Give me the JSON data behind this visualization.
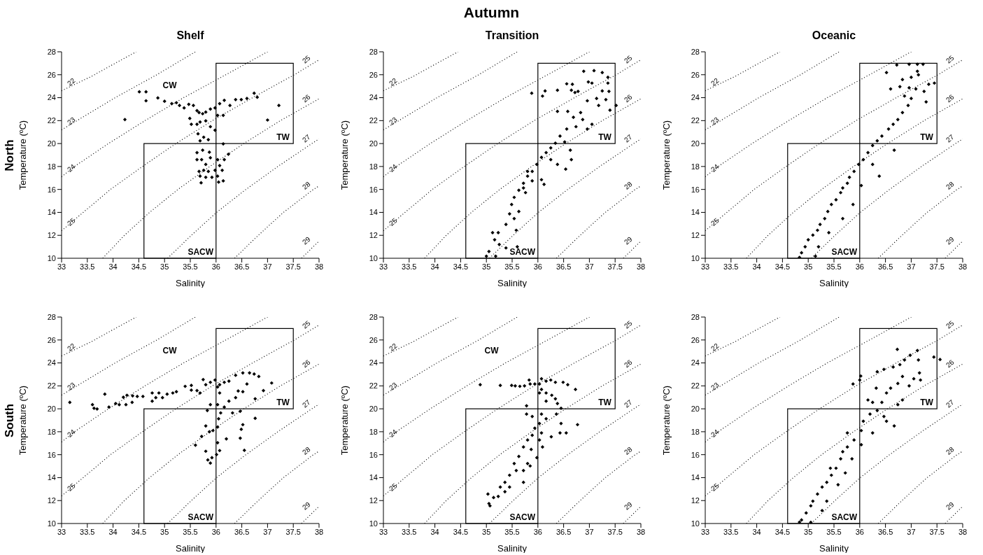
{
  "chart_data": [
    {
      "type": "scatter",
      "title": "Shelf",
      "xlabel": "Salinity",
      "ylabel": "Temperature (ºC)",
      "xlim": [
        33,
        38
      ],
      "xticks": [
        33,
        33.5,
        34,
        34.5,
        35,
        35.5,
        36,
        36.5,
        37,
        37.5,
        38
      ],
      "ylim": [
        10,
        28
      ],
      "yticks": [
        10,
        12,
        14,
        16,
        18,
        20,
        22,
        24,
        26,
        28
      ],
      "annotations": [
        "Autumn",
        "North",
        "TW",
        "SACW",
        "CW"
      ],
      "series": [
        {
          "type": "line",
          "name": "22",
          "color": "#000000",
          "line_style": "dotted",
          "x": [
            33,
            33.6,
            34,
            34.45
          ],
          "values": [
            24.6,
            25.9,
            26.9,
            28
          ]
        },
        {
          "type": "line",
          "name": "23",
          "color": "#000000",
          "line_style": "dotted",
          "x": [
            33,
            33.3,
            34.04,
            34.85,
            35.6
          ],
          "values": [
            21.2,
            22,
            24,
            26,
            28
          ]
        },
        {
          "type": "line",
          "name": "24",
          "color": "#000000",
          "line_style": "dotted",
          "x": [
            33,
            33.25,
            33.91,
            34.62,
            35.37,
            36.19,
            37
          ],
          "values": [
            17.1,
            18,
            20,
            22,
            24,
            26,
            28
          ]
        },
        {
          "type": "line",
          "name": "25",
          "color": "#000000",
          "line_style": "dotted",
          "x": [
            33,
            33.42,
            33.95,
            34.57,
            35.22,
            35.93,
            36.71,
            37.52,
            38
          ],
          "values": [
            12.4,
            14,
            16,
            18,
            20,
            22,
            24,
            26,
            27.3
          ]
        },
        {
          "type": "line",
          "name": "26",
          "color": "#000000",
          "line_style": "dotted",
          "x": [
            33.8,
            34.22,
            34.71,
            35.26,
            35.88,
            36.54,
            37.25,
            38
          ],
          "values": [
            10,
            12,
            14,
            16,
            18,
            20,
            22,
            23.9
          ]
        },
        {
          "type": "line",
          "name": "27",
          "color": "#000000",
          "line_style": "dotted",
          "x": [
            35.06,
            35.52,
            36.01,
            36.58,
            37.2,
            37.86,
            38
          ],
          "values": [
            10,
            12,
            14,
            16,
            18,
            20,
            20.4
          ]
        },
        {
          "type": "line",
          "name": "28",
          "color": "#000000",
          "line_style": "dotted",
          "x": [
            36.36,
            36.82,
            37.31,
            37.89,
            38
          ],
          "values": [
            10,
            12,
            14,
            16,
            16.3
          ]
        },
        {
          "type": "line",
          "name": "29",
          "color": "#000000",
          "line_style": "dotted",
          "x": [
            37.66,
            38
          ],
          "values": [
            10,
            11.5
          ]
        },
        {
          "type": "scatter",
          "color": "#000000",
          "marker": "diamond",
          "x": [
            34.51,
            34.64,
            34.64,
            34.23,
            34.87,
            35.0,
            35.14,
            35.23,
            35.29,
            35.38,
            35.47,
            35.56,
            35.63,
            35.67,
            35.74,
            35.8,
            35.89,
            35.98,
            36.07,
            36.16,
            36.27,
            36.38,
            36.49,
            36.6,
            36.74,
            36.8,
            37.22,
            37.0,
            36.03,
            36.14,
            35.49,
            35.52,
            35.63,
            35.69,
            35.8,
            35.89,
            35.98,
            35.65,
            35.76,
            35.85,
            35.69,
            36.14,
            35.74,
            35.87,
            35.63,
            35.63,
            35.72,
            35.89,
            36.03,
            36.16,
            36.24,
            35.8,
            36.07,
            35.67,
            35.76,
            35.85,
            35.98,
            36.12,
            35.69,
            35.8,
            35.92,
            36.03,
            35.71,
            36.05,
            36.14
          ],
          "values": [
            24.51,
            24.51,
            23.73,
            22.09,
            23.98,
            23.69,
            23.48,
            23.56,
            23.32,
            23.11,
            23.42,
            23.32,
            22.87,
            22.7,
            22.6,
            22.74,
            23.01,
            23.11,
            23.48,
            23.77,
            23.32,
            23.83,
            23.83,
            23.93,
            24.39,
            24.04,
            23.32,
            22.05,
            22.46,
            22.46,
            22.19,
            21.68,
            21.68,
            21.88,
            21.98,
            21.47,
            21.16,
            20.85,
            20.55,
            20.34,
            20.24,
            19.97,
            19.42,
            19.25,
            19.21,
            18.6,
            18.6,
            18.76,
            18.6,
            18.6,
            19.07,
            18.18,
            18.08,
            17.57,
            17.67,
            17.57,
            17.67,
            17.67,
            17.16,
            17.06,
            17.06,
            17.16,
            16.58,
            16.64,
            16.75
          ]
        }
      ]
    },
    {
      "type": "scatter",
      "title": "Transition",
      "xlabel": "Salinity",
      "ylabel": "Temperature (ºC)",
      "xlim": [
        33,
        38
      ],
      "xticks": [
        33,
        33.5,
        34,
        34.5,
        35,
        35.5,
        36,
        36.5,
        37,
        37.5,
        38
      ],
      "ylim": [
        10,
        28
      ],
      "yticks": [
        10,
        12,
        14,
        16,
        18,
        20,
        22,
        24,
        26,
        28
      ],
      "annotations": [
        "TW",
        "SACW"
      ],
      "series": [
        {
          "type": "line",
          "name": "22",
          "color": "#000000",
          "line_style": "dotted",
          "x": [
            33,
            33.6,
            34,
            34.45
          ],
          "values": [
            24.6,
            25.9,
            26.9,
            28
          ]
        },
        {
          "type": "line",
          "name": "23",
          "color": "#000000",
          "line_style": "dotted",
          "x": [
            33,
            33.3,
            34.04,
            34.85,
            35.6
          ],
          "values": [
            21.2,
            22,
            24,
            26,
            28
          ]
        },
        {
          "type": "line",
          "name": "24",
          "color": "#000000",
          "line_style": "dotted",
          "x": [
            33,
            33.25,
            33.91,
            34.62,
            35.37,
            36.19,
            37
          ],
          "values": [
            17.1,
            18,
            20,
            22,
            24,
            26,
            28
          ]
        },
        {
          "type": "line",
          "name": "25",
          "color": "#000000",
          "line_style": "dotted",
          "x": [
            33,
            33.42,
            33.95,
            34.57,
            35.22,
            35.93,
            36.71,
            37.52,
            38
          ],
          "values": [
            12.4,
            14,
            16,
            18,
            20,
            22,
            24,
            26,
            27.3
          ]
        },
        {
          "type": "line",
          "name": "26",
          "color": "#000000",
          "line_style": "dotted",
          "x": [
            33.8,
            34.22,
            34.71,
            35.26,
            35.88,
            36.54,
            37.25,
            38
          ],
          "values": [
            10,
            12,
            14,
            16,
            18,
            20,
            22,
            23.9
          ]
        },
        {
          "type": "line",
          "name": "27",
          "color": "#000000",
          "line_style": "dotted",
          "x": [
            35.06,
            35.52,
            36.01,
            36.58,
            37.2,
            37.86,
            38
          ],
          "values": [
            10,
            12,
            14,
            16,
            18,
            20,
            20.4
          ]
        },
        {
          "type": "line",
          "name": "28",
          "color": "#000000",
          "line_style": "dotted",
          "x": [
            36.36,
            36.82,
            37.31,
            37.89,
            38
          ],
          "values": [
            10,
            12,
            14,
            16,
            16.3
          ]
        },
        {
          "type": "line",
          "name": "29",
          "color": "#000000",
          "line_style": "dotted",
          "x": [
            37.66,
            38
          ],
          "values": [
            10,
            11.5
          ]
        },
        {
          "type": "scatter",
          "color": "#000000",
          "marker": "diamond",
          "x": [
            35.88,
            36.09,
            36.14,
            36.38,
            36.56,
            36.67,
            36.65,
            36.72,
            36.78,
            36.89,
            37.09,
            37.25,
            37.36,
            36.98,
            37.05,
            37.36,
            37.25,
            37.38,
            37.14,
            37.32,
            37.52,
            37.4,
            37.18,
            36.96,
            36.83,
            36.87,
            36.69,
            36.58,
            36.38,
            36.74,
            36.96,
            37.05,
            36.56,
            36.43,
            36.34,
            36.52,
            36.63,
            36.25,
            36.16,
            36.07,
            36.25,
            36.38,
            36.54,
            36.65,
            35.98,
            35.89,
            35.8,
            35.89,
            36.07,
            36.12,
            35.72,
            35.63,
            35.76,
            35.54,
            35.49,
            35.63,
            35.45,
            35.38,
            35.54,
            35.58,
            35.23,
            35.12,
            35.16,
            35.25,
            35.05,
            35.0,
            35.18,
            35.38,
            35.6,
            35.8,
            35.72
          ],
          "values": [
            24.39,
            24.14,
            24.59,
            24.65,
            25.21,
            25.17,
            24.65,
            24.45,
            24.55,
            26.3,
            26.36,
            26.19,
            25.78,
            25.37,
            25.27,
            25.27,
            24.59,
            24.55,
            23.93,
            23.83,
            23.32,
            22.91,
            23.32,
            23.73,
            22.7,
            22.09,
            22.29,
            22.8,
            22.8,
            21.47,
            21.27,
            21.68,
            21.27,
            20.65,
            20.03,
            20.14,
            19.42,
            19.62,
            19.21,
            18.8,
            18.6,
            18.18,
            17.77,
            18.6,
            18.18,
            17.57,
            17.16,
            16.75,
            16.85,
            16.44,
            16.54,
            15.93,
            15.72,
            15.31,
            14.69,
            14.08,
            13.87,
            12.95,
            13.46,
            12.44,
            12.23,
            12.23,
            11.61,
            11.2,
            10.59,
            10.18,
            10.18,
            10.9,
            11.0,
            17.57,
            16.13
          ]
        }
      ]
    },
    {
      "type": "scatter",
      "title": "Oceanic",
      "xlabel": "Salinity",
      "ylabel": "Temperature (ºC)",
      "xlim": [
        33,
        38
      ],
      "xticks": [
        33,
        33.5,
        34,
        34.5,
        35,
        35.5,
        36,
        36.5,
        37,
        37.5,
        38
      ],
      "ylim": [
        10,
        28
      ],
      "yticks": [
        10,
        12,
        14,
        16,
        18,
        20,
        22,
        24,
        26,
        28
      ],
      "annotations": [
        "TW",
        "SACW"
      ],
      "series": [
        {
          "type": "line",
          "name": "22",
          "color": "#000000",
          "line_style": "dotted",
          "x": [
            33,
            33.6,
            34,
            34.45
          ],
          "values": [
            24.6,
            25.9,
            26.9,
            28
          ]
        },
        {
          "type": "line",
          "name": "23",
          "color": "#000000",
          "line_style": "dotted",
          "x": [
            33,
            33.3,
            34.04,
            34.85,
            35.6
          ],
          "values": [
            21.2,
            22,
            24,
            26,
            28
          ]
        },
        {
          "type": "line",
          "name": "24",
          "color": "#000000",
          "line_style": "dotted",
          "x": [
            33,
            33.25,
            33.91,
            34.62,
            35.37,
            36.19,
            37
          ],
          "values": [
            17.1,
            18,
            20,
            22,
            24,
            26,
            28
          ]
        },
        {
          "type": "line",
          "name": "25",
          "color": "#000000",
          "line_style": "dotted",
          "x": [
            33,
            33.42,
            33.95,
            34.57,
            35.22,
            35.93,
            36.71,
            37.52,
            38
          ],
          "values": [
            12.4,
            14,
            16,
            18,
            20,
            22,
            24,
            26,
            27.3
          ]
        },
        {
          "type": "line",
          "name": "26",
          "color": "#000000",
          "line_style": "dotted",
          "x": [
            33.8,
            34.22,
            34.71,
            35.26,
            35.88,
            36.54,
            37.25,
            38
          ],
          "values": [
            10,
            12,
            14,
            16,
            18,
            20,
            22,
            23.9
          ]
        },
        {
          "type": "line",
          "name": "27",
          "color": "#000000",
          "line_style": "dotted",
          "x": [
            35.06,
            35.52,
            36.01,
            36.58,
            37.2,
            37.86,
            38
          ],
          "values": [
            10,
            12,
            14,
            16,
            18,
            20,
            20.4
          ]
        },
        {
          "type": "line",
          "name": "28",
          "color": "#000000",
          "line_style": "dotted",
          "x": [
            36.36,
            36.82,
            37.31,
            37.89,
            38
          ],
          "values": [
            10,
            12,
            14,
            16,
            16.3
          ]
        },
        {
          "type": "line",
          "name": "29",
          "color": "#000000",
          "line_style": "dotted",
          "x": [
            37.66,
            38
          ],
          "values": [
            10,
            11.5
          ]
        },
        {
          "type": "scatter",
          "color": "#000000",
          "marker": "diamond",
          "x": [
            36.72,
            36.96,
            37.12,
            37.12,
            37.23,
            36.52,
            36.83,
            37.0,
            37.14,
            37.34,
            37.45,
            36.78,
            36.96,
            37.09,
            37.25,
            37.29,
            36.6,
            36.87,
            37.0,
            36.94,
            36.83,
            36.74,
            36.65,
            36.56,
            36.43,
            36.34,
            36.67,
            36.25,
            36.16,
            36.07,
            36.25,
            36.38,
            35.98,
            35.89,
            35.8,
            35.76,
            36.03,
            35.67,
            35.63,
            35.54,
            35.87,
            35.45,
            35.38,
            35.32,
            35.67,
            35.23,
            35.18,
            35.09,
            35.4,
            35.0,
            34.94,
            35.2,
            34.87,
            34.83,
            35.14
          ],
          "values": [
            26.85,
            26.91,
            26.91,
            26.3,
            26.91,
            26.19,
            25.58,
            25.78,
            25.99,
            25.17,
            25.27,
            24.96,
            24.86,
            24.76,
            24.55,
            23.63,
            24.76,
            24.14,
            23.93,
            23.32,
            22.7,
            22.09,
            21.68,
            21.27,
            20.65,
            20.24,
            19.42,
            19.83,
            19.21,
            18.6,
            18.18,
            17.16,
            18.18,
            17.57,
            17.06,
            16.54,
            16.34,
            16.13,
            15.72,
            15.1,
            14.69,
            14.69,
            14.08,
            13.46,
            13.46,
            12.95,
            12.44,
            12.02,
            12.23,
            11.61,
            11.0,
            11.0,
            10.48,
            10.07,
            10.18
          ]
        }
      ]
    },
    {
      "type": "scatter",
      "xlabel": "Salinity",
      "ylabel": "Temperature (ºC)",
      "xlim": [
        33,
        38
      ],
      "xticks": [
        33,
        33.5,
        34,
        34.5,
        35,
        35.5,
        36,
        36.5,
        37,
        37.5,
        38
      ],
      "ylim": [
        10,
        28
      ],
      "yticks": [
        10,
        12,
        14,
        16,
        18,
        20,
        22,
        24,
        26,
        28
      ],
      "annotations": [
        "South",
        "TW",
        "SACW",
        "CW"
      ],
      "series": [
        {
          "type": "line",
          "name": "22",
          "color": "#000000",
          "line_style": "dotted",
          "x": [
            33,
            33.6,
            34,
            34.45
          ],
          "values": [
            24.6,
            25.9,
            26.9,
            28
          ]
        },
        {
          "type": "line",
          "name": "23",
          "color": "#000000",
          "line_style": "dotted",
          "x": [
            33,
            33.3,
            34.04,
            34.85,
            35.6
          ],
          "values": [
            21.2,
            22,
            24,
            26,
            28
          ]
        },
        {
          "type": "line",
          "name": "24",
          "color": "#000000",
          "line_style": "dotted",
          "x": [
            33,
            33.25,
            33.91,
            34.62,
            35.37,
            36.19,
            37
          ],
          "values": [
            17.1,
            18,
            20,
            22,
            24,
            26,
            28
          ]
        },
        {
          "type": "line",
          "name": "25",
          "color": "#000000",
          "line_style": "dotted",
          "x": [
            33,
            33.42,
            33.95,
            34.57,
            35.22,
            35.93,
            36.71,
            37.52,
            38
          ],
          "values": [
            12.4,
            14,
            16,
            18,
            20,
            22,
            24,
            26,
            27.3
          ]
        },
        {
          "type": "line",
          "name": "26",
          "color": "#000000",
          "line_style": "dotted",
          "x": [
            33.8,
            34.22,
            34.71,
            35.26,
            35.88,
            36.54,
            37.25,
            38
          ],
          "values": [
            10,
            12,
            14,
            16,
            18,
            20,
            22,
            23.9
          ]
        },
        {
          "type": "line",
          "name": "27",
          "color": "#000000",
          "line_style": "dotted",
          "x": [
            35.06,
            35.52,
            36.01,
            36.58,
            37.2,
            37.86,
            38
          ],
          "values": [
            10,
            12,
            14,
            16,
            18,
            20,
            20.4
          ]
        },
        {
          "type": "line",
          "name": "28",
          "color": "#000000",
          "line_style": "dotted",
          "x": [
            36.36,
            36.82,
            37.31,
            37.89,
            38
          ],
          "values": [
            10,
            12,
            14,
            16,
            16.3
          ]
        },
        {
          "type": "line",
          "name": "29",
          "color": "#000000",
          "line_style": "dotted",
          "x": [
            37.66,
            38
          ],
          "values": [
            10,
            11.5
          ]
        },
        {
          "type": "scatter",
          "color": "#000000",
          "marker": "diamond",
          "x": [
            33.16,
            33.6,
            33.63,
            33.69,
            33.84,
            33.92,
            34.05,
            34.12,
            34.2,
            34.25,
            34.27,
            34.37,
            34.38,
            34.47,
            34.58,
            34.76,
            34.76,
            34.83,
            34.89,
            34.96,
            35.05,
            35.16,
            35.23,
            35.4,
            35.52,
            35.52,
            35.63,
            35.75,
            35.69,
            35.8,
            35.89,
            35.98,
            36.07,
            36.03,
            36.16,
            36.25,
            36.38,
            36.52,
            36.65,
            36.74,
            36.83,
            37.08,
            36.92,
            36.6,
            36.43,
            36.25,
            36.07,
            36.38,
            36.52,
            36.76,
            35.83,
            35.89,
            36.03,
            36.16,
            36.09,
            36.32,
            36.47,
            36.76,
            35.8,
            35.87,
            35.72,
            35.94,
            36.03,
            36.05,
            36.2,
            36.52,
            36.49,
            36.47,
            35.6,
            35.8,
            36.03,
            36.07,
            35.84,
            35.92,
            35.89,
            36.01,
            36.55
          ],
          "values": [
            20.56,
            20.36,
            20.05,
            19.99,
            21.28,
            20.15,
            20.46,
            20.36,
            21.01,
            20.36,
            21.18,
            20.56,
            21.13,
            21.08,
            21.08,
            21.38,
            20.67,
            20.97,
            21.38,
            20.97,
            21.28,
            21.38,
            21.49,
            21.96,
            22.04,
            21.63,
            21.59,
            22.55,
            21.38,
            22.1,
            22.31,
            22.51,
            22.1,
            21.9,
            22.31,
            22.41,
            22.92,
            23.13,
            23.13,
            23.03,
            22.82,
            22.25,
            21.59,
            22.16,
            21.55,
            20.67,
            21.38,
            20.97,
            21.49,
            20.87,
            19.85,
            20.36,
            20.36,
            20.15,
            19.64,
            19.64,
            19.79,
            19.17,
            18.51,
            18.0,
            17.59,
            18.1,
            18.41,
            19.13,
            17.38,
            18.62,
            18.21,
            17.44,
            16.83,
            16.3,
            17.04,
            16.36,
            15.54,
            15.74,
            15.27,
            16.01,
            16.38
          ]
        }
      ]
    },
    {
      "type": "scatter",
      "xlabel": "Salinity",
      "ylabel": "Temperature (ºC)",
      "xlim": [
        33,
        38
      ],
      "xticks": [
        33,
        33.5,
        34,
        34.5,
        35,
        35.5,
        36,
        36.5,
        37,
        37.5,
        38
      ],
      "ylim": [
        10,
        28
      ],
      "yticks": [
        10,
        12,
        14,
        16,
        18,
        20,
        22,
        24,
        26,
        28
      ],
      "annotations": [
        "TW",
        "SACW",
        "CW"
      ],
      "series": [
        {
          "type": "line",
          "name": "22",
          "color": "#000000",
          "line_style": "dotted",
          "x": [
            33,
            33.6,
            34,
            34.45
          ],
          "values": [
            24.6,
            25.9,
            26.9,
            28
          ]
        },
        {
          "type": "line",
          "name": "23",
          "color": "#000000",
          "line_style": "dotted",
          "x": [
            33,
            33.3,
            34.04,
            34.85,
            35.6
          ],
          "values": [
            21.2,
            22,
            24,
            26,
            28
          ]
        },
        {
          "type": "line",
          "name": "24",
          "color": "#000000",
          "line_style": "dotted",
          "x": [
            33,
            33.25,
            33.91,
            34.62,
            35.37,
            36.19,
            37
          ],
          "values": [
            17.1,
            18,
            20,
            22,
            24,
            26,
            28
          ]
        },
        {
          "type": "line",
          "name": "25",
          "color": "#000000",
          "line_style": "dotted",
          "x": [
            33,
            33.42,
            33.95,
            34.57,
            35.22,
            35.93,
            36.71,
            37.52,
            38
          ],
          "values": [
            12.4,
            14,
            16,
            18,
            20,
            22,
            24,
            26,
            27.3
          ]
        },
        {
          "type": "line",
          "name": "26",
          "color": "#000000",
          "line_style": "dotted",
          "x": [
            33.8,
            34.22,
            34.71,
            35.26,
            35.88,
            36.54,
            37.25,
            38
          ],
          "values": [
            10,
            12,
            14,
            16,
            18,
            20,
            22,
            23.9
          ]
        },
        {
          "type": "line",
          "name": "27",
          "color": "#000000",
          "line_style": "dotted",
          "x": [
            35.06,
            35.52,
            36.01,
            36.58,
            37.2,
            37.86,
            38
          ],
          "values": [
            10,
            12,
            14,
            16,
            18,
            20,
            20.4
          ]
        },
        {
          "type": "line",
          "name": "28",
          "color": "#000000",
          "line_style": "dotted",
          "x": [
            36.36,
            36.82,
            37.31,
            37.89,
            38
          ],
          "values": [
            10,
            12,
            14,
            16,
            16.3
          ]
        },
        {
          "type": "line",
          "name": "29",
          "color": "#000000",
          "line_style": "dotted",
          "x": [
            37.66,
            38
          ],
          "values": [
            10,
            11.5
          ]
        },
        {
          "type": "scatter",
          "color": "#000000",
          "marker": "diamond",
          "x": [
            34.88,
            35.27,
            35.49,
            35.56,
            35.65,
            35.74,
            35.83,
            35.85,
            35.94,
            36.03,
            36.07,
            36.16,
            36.25,
            36.34,
            36.49,
            36.58,
            36.73,
            36.07,
            36.16,
            36.27,
            36.34,
            36.38,
            36.16,
            36.03,
            35.78,
            35.78,
            35.89,
            36.07,
            36.16,
            36.36,
            36.45,
            36.45,
            36.43,
            36.55,
            36.77,
            36.26,
            36.03,
            35.94,
            36.07,
            35.89,
            35.8,
            36.03,
            36.09,
            35.72,
            35.87,
            35.98,
            35.63,
            35.8,
            35.54,
            35.58,
            35.45,
            35.72,
            35.36,
            35.27,
            35.45,
            35.23,
            35.14,
            35.36,
            35.03,
            35.05,
            35.07,
            35.72,
            35.85
          ],
          "values": [
            22.1,
            22.04,
            22.04,
            22.0,
            21.96,
            22.0,
            22.51,
            22.16,
            22.16,
            22.16,
            22.62,
            22.41,
            22.51,
            22.31,
            22.31,
            22.1,
            21.69,
            21.69,
            21.38,
            21.18,
            20.87,
            20.46,
            20.67,
            21.38,
            20.26,
            19.54,
            19.33,
            19.54,
            19.13,
            19.54,
            20.05,
            18.72,
            17.9,
            17.9,
            18.62,
            17.56,
            18.72,
            18.31,
            17.9,
            17.69,
            17.28,
            17.28,
            16.67,
            16.67,
            16.46,
            15.74,
            15.85,
            15.23,
            15.23,
            14.62,
            14.21,
            14.62,
            13.59,
            13.18,
            13.18,
            12.36,
            12.26,
            12.77,
            12.57,
            11.74,
            11.54,
            13.59,
            15.02
          ]
        }
      ]
    },
    {
      "type": "scatter",
      "xlabel": "Salinity",
      "ylabel": "Temperature (ºC)",
      "xlim": [
        33,
        38
      ],
      "xticks": [
        33,
        33.5,
        34,
        34.5,
        35,
        35.5,
        36,
        36.5,
        37,
        37.5,
        38
      ],
      "ylim": [
        10,
        28
      ],
      "yticks": [
        10,
        12,
        14,
        16,
        18,
        20,
        22,
        24,
        26,
        28
      ],
      "annotations": [
        "TW",
        "SACW"
      ],
      "series": [
        {
          "type": "line",
          "name": "22",
          "color": "#000000",
          "line_style": "dotted",
          "x": [
            33,
            33.6,
            34,
            34.45
          ],
          "values": [
            24.6,
            25.9,
            26.9,
            28
          ]
        },
        {
          "type": "line",
          "name": "23",
          "color": "#000000",
          "line_style": "dotted",
          "x": [
            33,
            33.3,
            34.04,
            34.85,
            35.6
          ],
          "values": [
            21.2,
            22,
            24,
            26,
            28
          ]
        },
        {
          "type": "line",
          "name": "24",
          "color": "#000000",
          "line_style": "dotted",
          "x": [
            33,
            33.25,
            33.91,
            34.62,
            35.37,
            36.19,
            37
          ],
          "values": [
            17.1,
            18,
            20,
            22,
            24,
            26,
            28
          ]
        },
        {
          "type": "line",
          "name": "25",
          "color": "#000000",
          "line_style": "dotted",
          "x": [
            33,
            33.42,
            33.95,
            34.57,
            35.22,
            35.93,
            36.71,
            37.52,
            38
          ],
          "values": [
            12.4,
            14,
            16,
            18,
            20,
            22,
            24,
            26,
            27.3
          ]
        },
        {
          "type": "line",
          "name": "26",
          "color": "#000000",
          "line_style": "dotted",
          "x": [
            33.8,
            34.22,
            34.71,
            35.26,
            35.88,
            36.54,
            37.25,
            38
          ],
          "values": [
            10,
            12,
            14,
            16,
            18,
            20,
            22,
            23.9
          ]
        },
        {
          "type": "line",
          "name": "27",
          "color": "#000000",
          "line_style": "dotted",
          "x": [
            35.06,
            35.52,
            36.01,
            36.58,
            37.2,
            37.86,
            38
          ],
          "values": [
            10,
            12,
            14,
            16,
            18,
            20,
            20.4
          ]
        },
        {
          "type": "line",
          "name": "28",
          "color": "#000000",
          "line_style": "dotted",
          "x": [
            36.36,
            36.82,
            37.31,
            37.89,
            38
          ],
          "values": [
            10,
            12,
            14,
            16,
            16.3
          ]
        },
        {
          "type": "line",
          "name": "29",
          "color": "#000000",
          "line_style": "dotted",
          "x": [
            37.66,
            38
          ],
          "values": [
            10,
            11.5
          ]
        },
        {
          "type": "scatter",
          "color": "#000000",
          "marker": "diamond",
          "x": [
            36.73,
            37.12,
            37.44,
            37.56,
            36.98,
            36.87,
            36.78,
            36.65,
            36.47,
            36.34,
            37.14,
            37.16,
            37.18,
            37.05,
            36.96,
            36.83,
            36.74,
            36.6,
            36.52,
            36.32,
            36.16,
            36.25,
            36.0,
            36.02,
            35.87,
            36.43,
            36.83,
            36.74,
            36.34,
            36.2,
            36.47,
            36.67,
            36.52,
            36.07,
            36.03,
            36.25,
            35.76,
            35.89,
            35.76,
            36.03,
            35.67,
            35.63,
            35.85,
            35.54,
            35.45,
            35.72,
            35.36,
            35.27,
            35.58,
            35.18,
            35.09,
            35.36,
            35.05,
            34.96,
            35.27,
            34.87,
            34.83,
            35.05,
            35.43
          ],
          "values": [
            25.18,
            25.08,
            24.51,
            24.3,
            24.67,
            24.26,
            23.85,
            23.64,
            23.44,
            23.23,
            24.26,
            23.13,
            22.51,
            22.62,
            22.0,
            22.82,
            22.21,
            21.8,
            21.38,
            21.8,
            20.77,
            20.56,
            22.51,
            22.86,
            22.16,
            20.56,
            20.77,
            20.36,
            19.85,
            19.54,
            19.33,
            18.51,
            18.92,
            18.92,
            18.1,
            17.9,
            17.9,
            17.28,
            16.67,
            16.87,
            16.26,
            15.64,
            15.64,
            14.82,
            14.21,
            14.41,
            13.59,
            13.18,
            13.38,
            12.57,
            11.95,
            11.95,
            11.54,
            10.92,
            11.13,
            10.31,
            10.12,
            10.1,
            14.82
          ]
        }
      ]
    }
  ]
}
